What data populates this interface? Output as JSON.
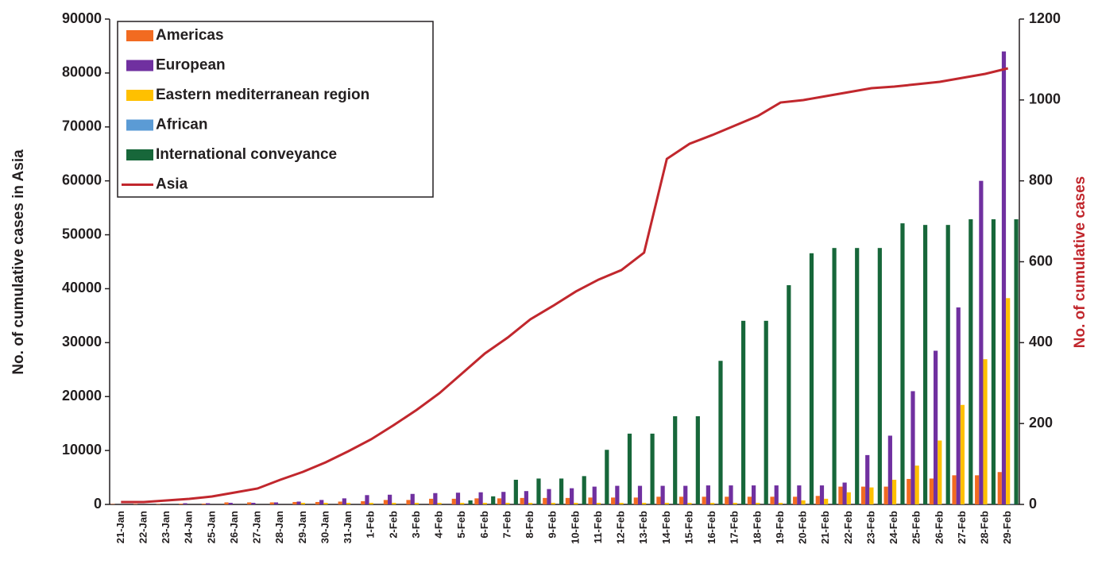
{
  "chart_data": {
    "type": "bar",
    "y_label": "No. of cumulative cases in Asia",
    "y2_label": "No. of cumulative cases",
    "y2_label_color": "#c1272d",
    "categories": [
      "21-Jan",
      "22-Jan",
      "23-Jan",
      "24-Jan",
      "25-Jan",
      "26-Jan",
      "27-Jan",
      "28-Jan",
      "29-Jan",
      "30-Jan",
      "31-Jan",
      "1-Feb",
      "2-Feb",
      "3-Feb",
      "4-Feb",
      "5-Feb",
      "6-Feb",
      "7-Feb",
      "8-Feb",
      "9-Feb",
      "10-Feb",
      "11-Feb",
      "12-Feb",
      "13-Feb",
      "14-Feb",
      "15-Feb",
      "16-Feb",
      "17-Feb",
      "18-Feb",
      "19-Feb",
      "20-Feb",
      "21-Feb",
      "22-Feb",
      "23-Feb",
      "24-Feb",
      "25-Feb",
      "26-Feb",
      "27-Feb",
      "28-Feb",
      "29-Feb"
    ],
    "ylim": [
      0,
      90000
    ],
    "yticks": [
      0,
      10000,
      20000,
      30000,
      40000,
      50000,
      60000,
      70000,
      80000,
      90000
    ],
    "y2lim": [
      0,
      1200
    ],
    "y2ticks": [
      0,
      200,
      400,
      600,
      800,
      1000,
      1200
    ],
    "series": [
      {
        "name": "Americas",
        "color": "#f26b21",
        "axis": "y2",
        "type": "bar",
        "values": [
          1,
          1,
          1,
          2,
          2,
          5,
          5,
          5,
          6,
          6,
          7,
          8,
          11,
          11,
          14,
          14,
          15,
          15,
          16,
          16,
          16,
          17,
          17,
          17,
          19,
          19,
          19,
          19,
          19,
          19,
          19,
          21,
          44,
          44,
          44,
          63,
          64,
          72,
          72,
          80
        ]
      },
      {
        "name": "European",
        "color": "#7030a0",
        "axis": "y2",
        "type": "bar",
        "values": [
          0,
          0,
          0,
          3,
          3,
          4,
          4,
          5,
          7,
          11,
          15,
          23,
          24,
          26,
          28,
          29,
          30,
          31,
          33,
          38,
          40,
          44,
          46,
          46,
          46,
          46,
          47,
          47,
          47,
          47,
          47,
          47,
          54,
          122,
          170,
          280,
          380,
          487,
          800,
          1120
        ]
      },
      {
        "name": "Eastern mediterranean region",
        "color": "#ffc000",
        "axis": "y2",
        "type": "bar",
        "values": [
          0,
          0,
          0,
          0,
          0,
          0,
          0,
          0,
          4,
          4,
          4,
          4,
          4,
          4,
          4,
          4,
          4,
          4,
          4,
          4,
          4,
          4,
          4,
          4,
          4,
          4,
          4,
          4,
          4,
          4,
          10,
          14,
          30,
          42,
          61,
          96,
          158,
          246,
          359,
          510
        ]
      },
      {
        "name": "African",
        "color": "#5b9bd5",
        "axis": "y2",
        "type": "bar",
        "values": [
          0,
          0,
          0,
          0,
          0,
          0,
          0,
          0,
          0,
          0,
          0,
          0,
          0,
          0,
          0,
          0,
          0,
          0,
          0,
          0,
          0,
          0,
          0,
          0,
          0,
          0,
          0,
          0,
          0,
          0,
          0,
          0,
          0,
          0,
          0,
          0,
          0,
          0,
          0,
          1
        ]
      },
      {
        "name": "International conveyance",
        "color": "#17673a",
        "axis": "y2",
        "type": "bar",
        "values": [
          0,
          0,
          0,
          0,
          0,
          0,
          0,
          0,
          0,
          0,
          0,
          0,
          0,
          0,
          0,
          10,
          20,
          61,
          64,
          64,
          70,
          135,
          175,
          175,
          218,
          218,
          355,
          454,
          454,
          542,
          621,
          634,
          634,
          634,
          695,
          691,
          691,
          705,
          705,
          705
        ]
      },
      {
        "name": "Asia",
        "color": "#c1272d",
        "axis": "y",
        "type": "line",
        "values": [
          440,
          440,
          740,
          1030,
          1470,
          2210,
          2950,
          4570,
          6040,
          7810,
          9870,
          12080,
          14730,
          17530,
          20620,
          24300,
          27990,
          30930,
          34320,
          36830,
          39480,
          41690,
          43450,
          46690,
          64070,
          66870,
          68500,
          70260,
          72030,
          74530,
          74980,
          75710,
          76450,
          77190,
          77480,
          77920,
          78360,
          79100,
          79840,
          80870
        ]
      }
    ]
  }
}
